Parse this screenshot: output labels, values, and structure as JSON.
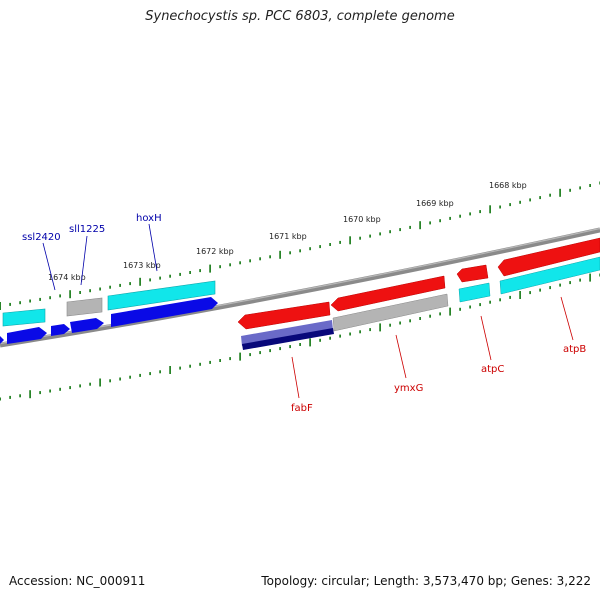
{
  "title": "Synechocystis sp. PCC 6803, complete genome",
  "footer": {
    "accession": "Accession: NC_000911",
    "stats": "Topology: circular; Length: 3,573,470 bp; Genes: 3,222"
  },
  "kbp_labels": [
    "1674 kbp",
    "1673 kbp",
    "1672 kbp",
    "1671 kbp",
    "1670 kbp",
    "1669 kbp",
    "1668 kbp"
  ],
  "gene_labels_top": [
    "ssl2420",
    "sll1225",
    "hoxH"
  ],
  "gene_labels_bottom": [
    "fabF",
    "ymxG",
    "atpC",
    "atpB"
  ],
  "colors": {
    "forward_label": "#0000aa",
    "reverse_label": "#cc0000",
    "backbone": "#8a8a8a",
    "ticks": "#117711",
    "red": "#ee1111",
    "blue": "#0a0ae6",
    "cyan": "#11e6ea",
    "grey": "#b4b4b4",
    "purple": "#6a6ac8",
    "navy": "#08087a"
  }
}
